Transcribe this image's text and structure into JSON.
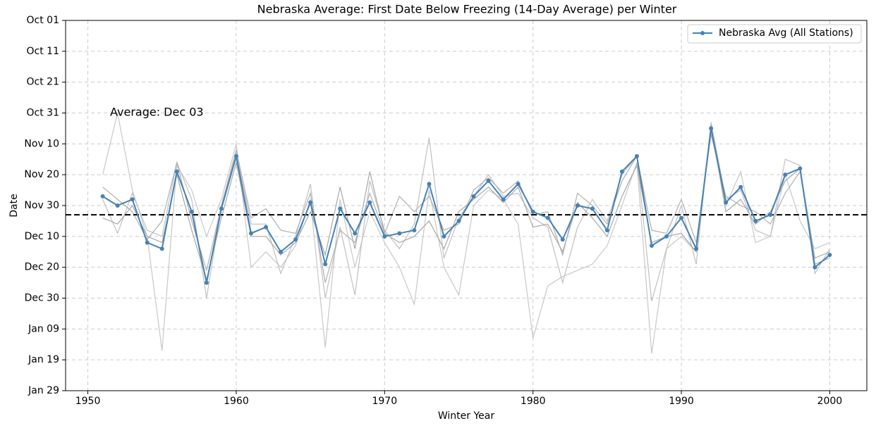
{
  "chart_data": {
    "type": "line",
    "title": "Nebraska Average: First Date Below Freezing (14-Day Average) per Winter",
    "x_label": "Winter Year",
    "y_label": "Date",
    "x": [
      1951,
      1952,
      1953,
      1954,
      1955,
      1956,
      1957,
      1958,
      1959,
      1960,
      1961,
      1962,
      1963,
      1964,
      1965,
      1966,
      1967,
      1968,
      1969,
      1970,
      1971,
      1972,
      1973,
      1974,
      1975,
      1976,
      1977,
      1978,
      1979,
      1980,
      1981,
      1982,
      1983,
      1984,
      1985,
      1986,
      1987,
      1988,
      1989,
      1990,
      1991,
      1992,
      1993,
      1994,
      1995,
      1996,
      1997,
      1998,
      1999,
      2000
    ],
    "series": [
      {
        "name": "Nebraska Avg (All Stations)",
        "color": "#4682b4",
        "values": [
          57,
          60,
          58,
          72,
          74,
          49,
          62,
          85,
          61,
          44,
          69,
          67,
          75,
          71,
          59,
          79,
          61,
          69,
          59,
          70,
          69,
          68,
          53,
          70,
          65,
          57,
          52,
          58,
          53,
          62,
          64,
          71,
          60,
          61,
          68,
          49,
          44,
          73,
          70,
          64,
          74,
          35,
          59,
          54,
          65,
          63,
          50,
          48,
          80,
          76
        ]
      }
    ],
    "station_series": [
      {
        "color": "#c8c8c8",
        "values": [
          50,
          30,
          55,
          70,
          107,
          47,
          55,
          70,
          58,
          40,
          80,
          75,
          80,
          73,
          58,
          106,
          58,
          80,
          62,
          72,
          80,
          92,
          55,
          80,
          89,
          60,
          55,
          58,
          66,
          103,
          86,
          83,
          81,
          79,
          73,
          60,
          46,
          108,
          74,
          70,
          75,
          36,
          60,
          49,
          72,
          70,
          50,
          65,
          74,
          72
        ]
      },
      {
        "color": "#c0c0c0",
        "values": [
          58,
          69,
          56,
          68,
          70,
          46,
          58,
          90,
          60,
          43,
          66,
          66,
          82,
          70,
          53,
          90,
          67,
          89,
          52,
          68,
          74,
          66,
          38,
          77,
          64,
          57,
          50,
          57,
          56,
          64,
          67,
          85,
          67,
          58,
          65,
          50,
          44,
          91,
          74,
          60,
          79,
          33,
          58,
          55,
          68,
          70,
          45,
          47,
          82,
          74
        ]
      },
      {
        "color": "#b0b0b0",
        "values": [
          54,
          58,
          62,
          71,
          65,
          46,
          65,
          81,
          60,
          42,
          64,
          61,
          68,
          69,
          56,
          85,
          68,
          72,
          56,
          69,
          57,
          62,
          57,
          68,
          66,
          55,
          51,
          56,
          52,
          63,
          62,
          76,
          56,
          60,
          66,
          52,
          44,
          68,
          69,
          58,
          72,
          37,
          57,
          60,
          62,
          66,
          56,
          49,
          79,
          77
        ]
      },
      {
        "color": "#a8a8a8",
        "values": [
          64,
          66,
          60,
          70,
          72,
          50,
          68,
          84,
          64,
          46,
          70,
          70,
          76,
          72,
          62,
          76,
          54,
          74,
          49,
          69,
          72,
          70,
          65,
          74,
          62,
          58,
          54,
          59,
          54,
          67,
          66,
          75,
          59,
          64,
          70,
          57,
          47,
          72,
          70,
          69,
          75,
          34,
          62,
          58,
          66,
          62,
          52,
          48,
          77,
          75
        ]
      }
    ],
    "average": 63,
    "average_label": "Average: Dec 03",
    "xlim": [
      1948.5,
      2002.5
    ],
    "xticks": [
      1950,
      1960,
      1970,
      1980,
      1990,
      2000
    ],
    "ylim": [
      120,
      0
    ],
    "yticks": [
      {
        "value": 0,
        "label": "Oct 01"
      },
      {
        "value": 10,
        "label": "Oct 11"
      },
      {
        "value": 20,
        "label": "Oct 21"
      },
      {
        "value": 30,
        "label": "Oct 31"
      },
      {
        "value": 40,
        "label": "Nov 10"
      },
      {
        "value": 50,
        "label": "Nov 20"
      },
      {
        "value": 60,
        "label": "Nov 30"
      },
      {
        "value": 70,
        "label": "Dec 10"
      },
      {
        "value": 80,
        "label": "Dec 20"
      },
      {
        "value": 90,
        "label": "Dec 30"
      },
      {
        "value": 100,
        "label": "Jan 09"
      },
      {
        "value": 110,
        "label": "Jan 19"
      },
      {
        "value": 120,
        "label": "Jan 29"
      }
    ],
    "grid": true,
    "legend": "upper right"
  }
}
